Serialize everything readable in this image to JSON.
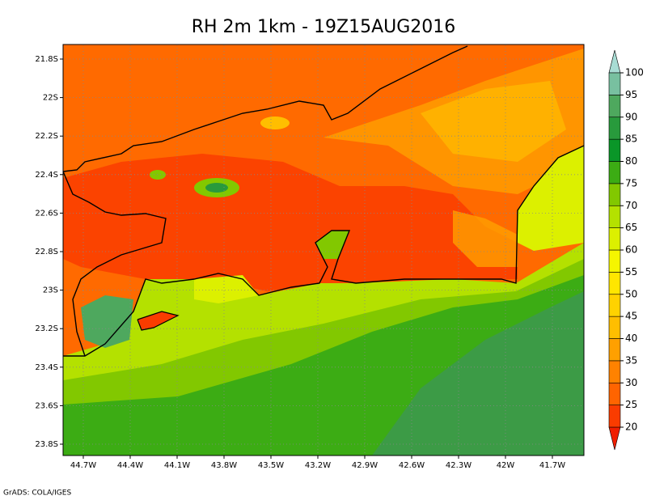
{
  "title": "RH 2m 1km - 19Z15AUG2016",
  "x_ticks": [
    "44.7W",
    "44.4W",
    "44.1W",
    "43.8W",
    "43.5W",
    "43.2W",
    "42.9W",
    "42.6W",
    "42.3W",
    "42W",
    "41.7W"
  ],
  "y_ticks": [
    "21.8S",
    "22S",
    "22.2S",
    "22.4S",
    "22.6S",
    "22.8S",
    "23S",
    "23.2S",
    "23.4S",
    "23.6S",
    "23.8S"
  ],
  "colorbar": {
    "levels": [
      20,
      25,
      30,
      35,
      40,
      45,
      50,
      55,
      60,
      65,
      70,
      75,
      80,
      85,
      90,
      95,
      100
    ],
    "colors": [
      "#f01e00",
      "#fa3c00",
      "#ff6400",
      "#ff8200",
      "#ffa000",
      "#ffbe00",
      "#ffd200",
      "#ffe600",
      "#f5f500",
      "#dcf000",
      "#b4e100",
      "#82c800",
      "#3cac14",
      "#0a9628",
      "#289a3c",
      "#4ea85e",
      "#78c0a0",
      "#a8dcd4"
    ]
  },
  "credit": "GrADS: COLA/IGES"
}
